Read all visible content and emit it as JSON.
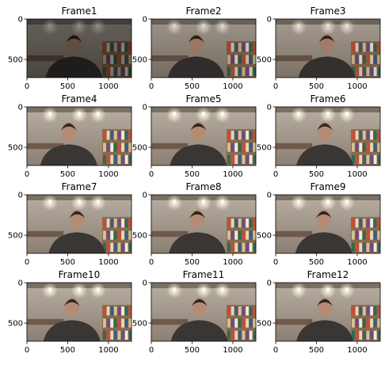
{
  "figure": {
    "rows": 4,
    "cols": 3,
    "x_ticks": [
      "0",
      "500",
      "1000"
    ],
    "y_ticks": [
      "0",
      "500"
    ],
    "frames": [
      {
        "title": "Frame1",
        "brightness": 0.55,
        "face_offset": 0.0
      },
      {
        "title": "Frame2",
        "brightness": 0.85,
        "face_offset": -0.02
      },
      {
        "title": "Frame3",
        "brightness": 0.9,
        "face_offset": 0.04
      },
      {
        "title": "Frame4",
        "brightness": 1.0,
        "face_offset": -0.05
      },
      {
        "title": "Frame5",
        "brightness": 1.0,
        "face_offset": 0.0
      },
      {
        "title": "Frame6",
        "brightness": 1.0,
        "face_offset": 0.02
      },
      {
        "title": "Frame7",
        "brightness": 1.0,
        "face_offset": 0.03
      },
      {
        "title": "Frame8",
        "brightness": 1.0,
        "face_offset": -0.01
      },
      {
        "title": "Frame9",
        "brightness": 1.0,
        "face_offset": 0.01
      },
      {
        "title": "Frame10",
        "brightness": 1.0,
        "face_offset": -0.02
      },
      {
        "title": "Frame11",
        "brightness": 1.0,
        "face_offset": 0.01
      },
      {
        "title": "Frame12",
        "brightness": 1.0,
        "face_offset": 0.02
      }
    ]
  },
  "colors": {
    "wall_top": "#b8aea3",
    "wall_bottom": "#8b7f72",
    "ceiling": "#7a6f64",
    "light": "#fffbe9",
    "skin": "#b48c74",
    "hair": "#2e2622",
    "hoodie": "#3a3634",
    "shelf": "#8a6a4c",
    "books": [
      "#c94b3b",
      "#e8d7b0",
      "#3c5a88",
      "#d8c38b",
      "#6a4a8c",
      "#f1e9dd",
      "#2f6b4f"
    ],
    "axis": "#000000"
  }
}
